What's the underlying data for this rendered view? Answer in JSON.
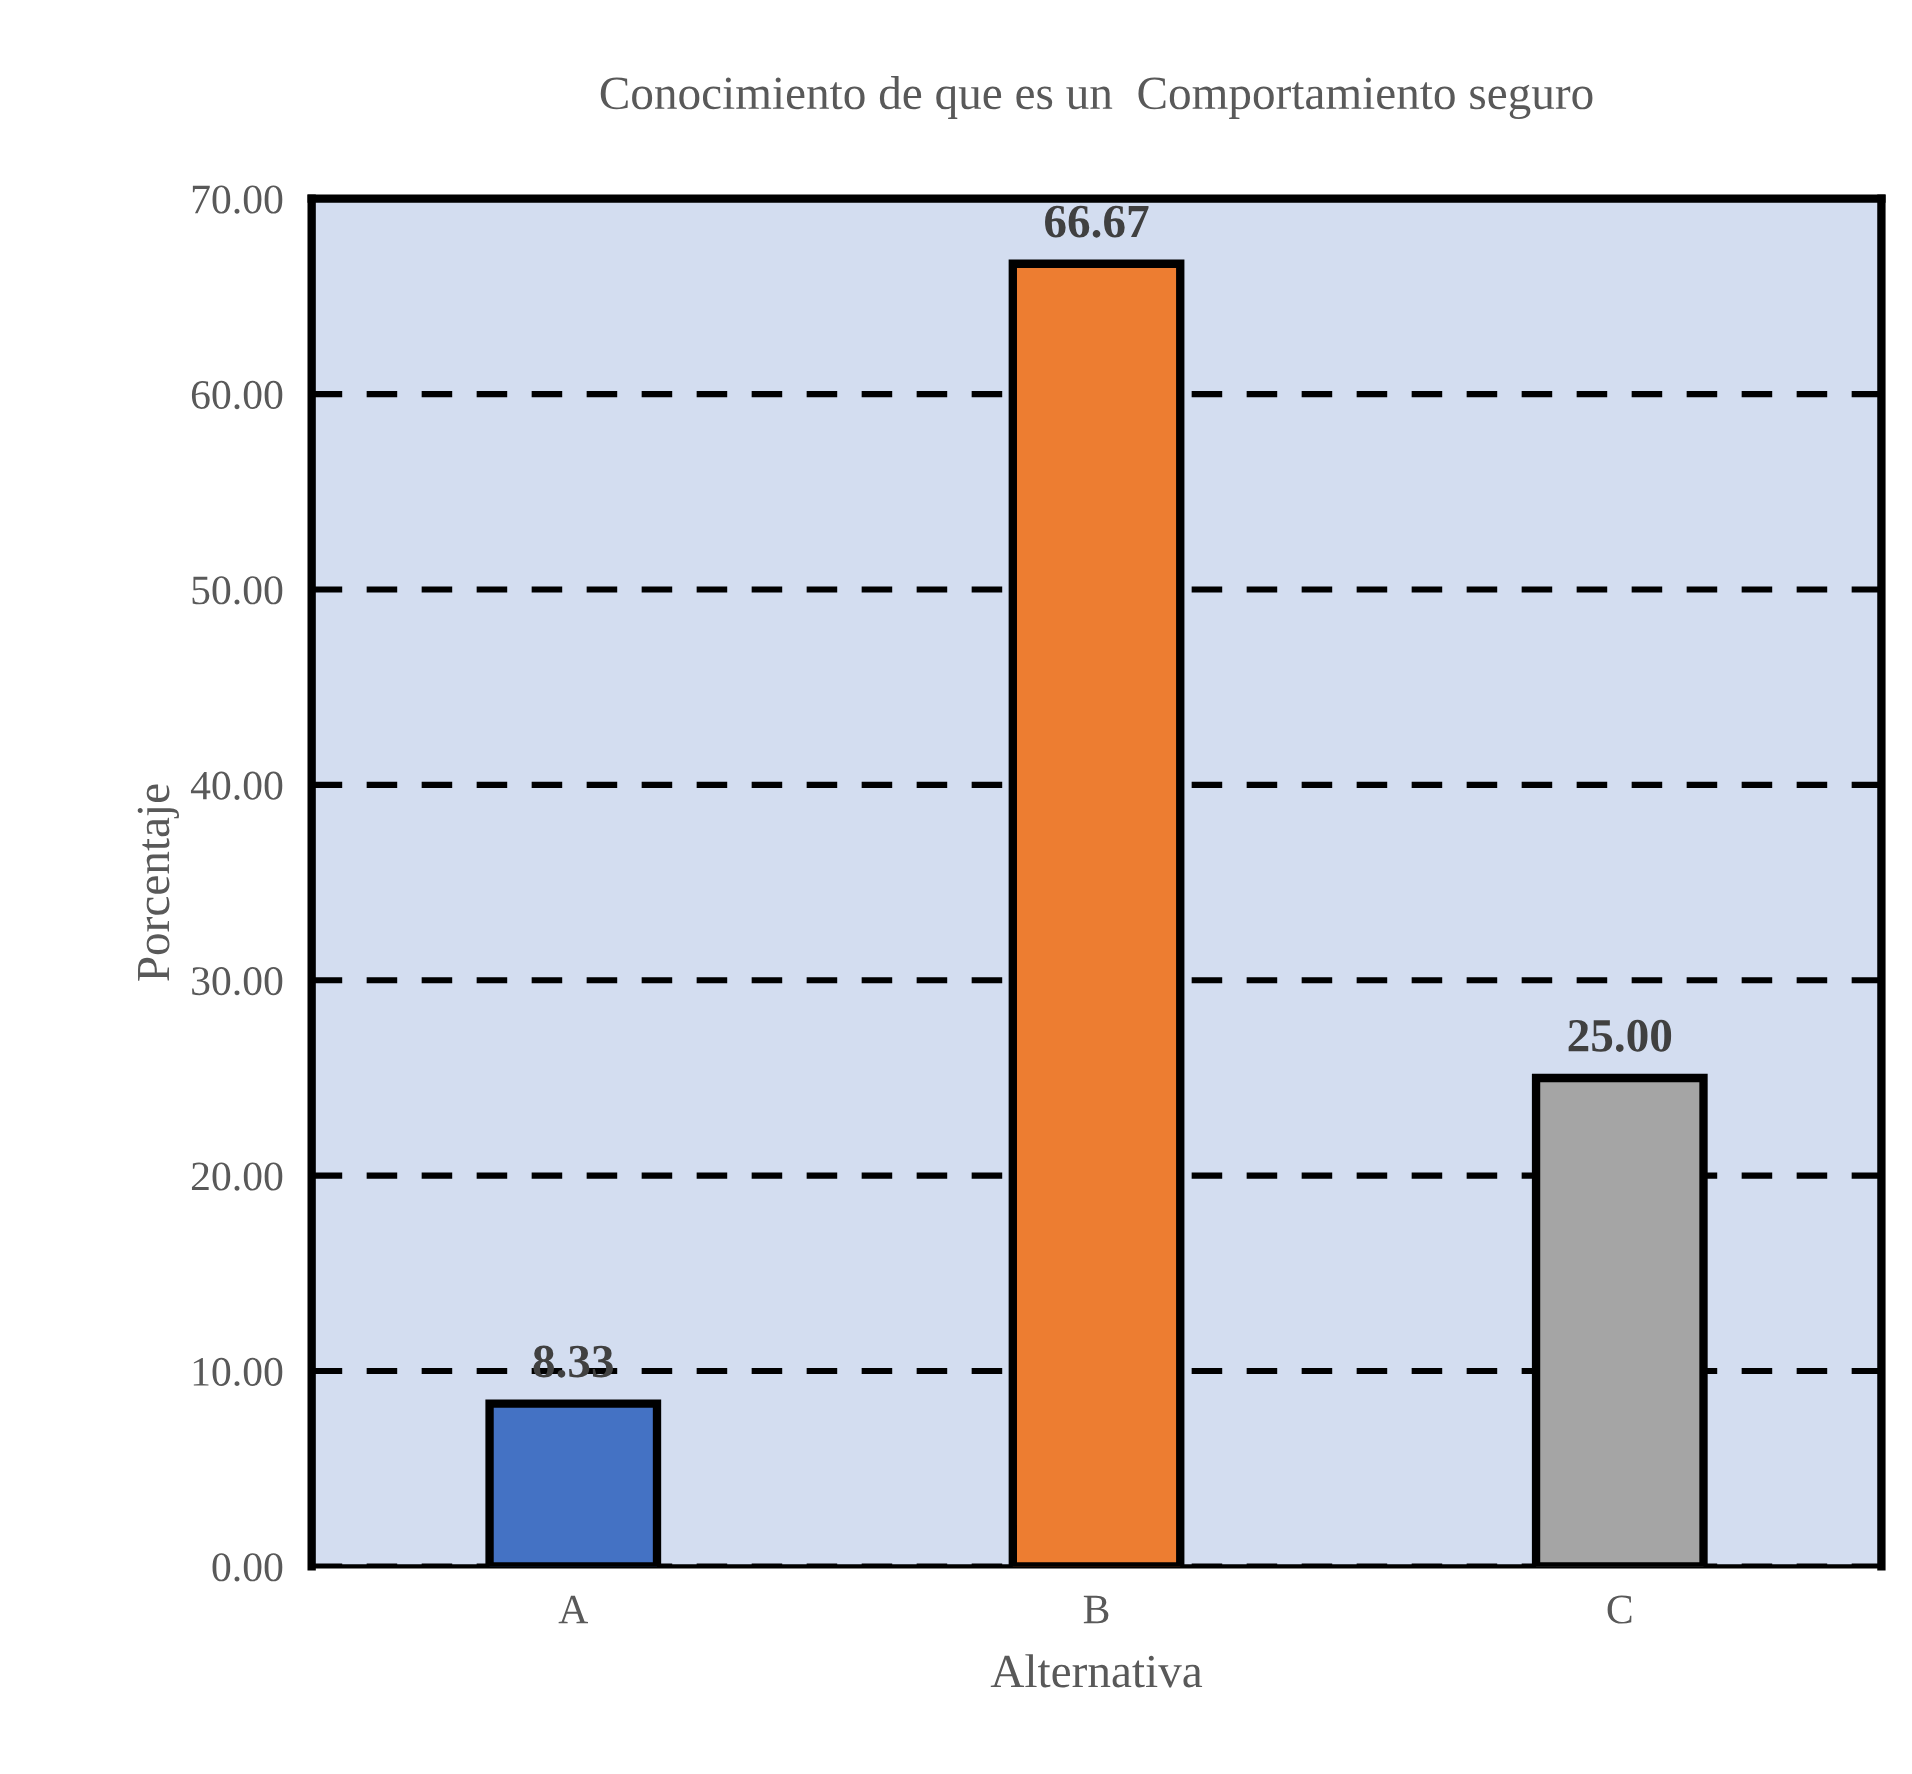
{
  "chart_data": {
    "type": "bar",
    "title": "Conocimiento de que es un  Comportamiento seguro",
    "xlabel": "Alternativa",
    "ylabel": "Porcentaje",
    "categories": [
      "A",
      "B",
      "C"
    ],
    "values": [
      8.33,
      66.67,
      25.0
    ],
    "value_labels": [
      "8.33",
      "66.67",
      "25.00"
    ],
    "colors": [
      "#4472c4",
      "#ed7d31",
      "#a5a5a5"
    ],
    "ylim": [
      0,
      70
    ],
    "yticks": [
      {
        "value": 0,
        "label": "0.00"
      },
      {
        "value": 10,
        "label": "10.00"
      },
      {
        "value": 20,
        "label": "20.00"
      },
      {
        "value": 30,
        "label": "30.00"
      },
      {
        "value": 40,
        "label": "40.00"
      },
      {
        "value": 50,
        "label": "50.00"
      },
      {
        "value": 60,
        "label": "60.00"
      },
      {
        "value": 70,
        "label": "70.00"
      }
    ],
    "grid": "y"
  }
}
